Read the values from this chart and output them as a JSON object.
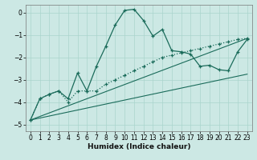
{
  "xlabel": "Humidex (Indice chaleur)",
  "background_color": "#cce8e4",
  "line_color": "#1a6b5a",
  "xlim": [
    -0.5,
    23.5
  ],
  "ylim": [
    -5.3,
    0.35
  ],
  "yticks": [
    0,
    -1,
    -2,
    -3,
    -4,
    -5
  ],
  "xticks": [
    0,
    1,
    2,
    3,
    4,
    5,
    6,
    7,
    8,
    9,
    10,
    11,
    12,
    13,
    14,
    15,
    16,
    17,
    18,
    19,
    20,
    21,
    22,
    23
  ],
  "curve1_x": [
    0,
    1,
    2,
    3,
    4,
    5,
    6,
    7,
    8,
    9,
    10,
    11,
    12,
    13,
    14,
    15,
    16,
    17,
    18,
    19,
    20,
    21,
    22,
    23
  ],
  "curve1_y": [
    -4.8,
    -3.85,
    -3.65,
    -3.5,
    -3.85,
    -2.7,
    -3.5,
    -2.4,
    -1.5,
    -0.55,
    0.1,
    0.15,
    -0.35,
    -1.05,
    -0.75,
    -1.7,
    -1.75,
    -1.85,
    -2.4,
    -2.35,
    -2.55,
    -2.6,
    -1.75,
    -1.2
  ],
  "curve2_x": [
    0,
    1,
    2,
    3,
    4,
    5,
    6,
    7,
    8,
    9,
    10,
    11,
    12,
    13,
    14,
    15,
    16,
    17,
    18,
    19,
    20,
    21,
    22,
    23
  ],
  "curve2_y": [
    -4.8,
    -3.85,
    -3.65,
    -3.5,
    -4.0,
    -3.5,
    -3.5,
    -3.5,
    -3.2,
    -3.0,
    -2.8,
    -2.6,
    -2.4,
    -2.2,
    -2.0,
    -1.9,
    -1.8,
    -1.7,
    -1.6,
    -1.5,
    -1.4,
    -1.3,
    -1.2,
    -1.15
  ],
  "trend1_x": [
    0,
    23
  ],
  "trend1_y": [
    -4.8,
    -1.15
  ],
  "trend2_x": [
    0,
    23
  ],
  "trend2_y": [
    -4.8,
    -2.75
  ],
  "grid_color": "#aad4cc",
  "tick_labelsize": 5.5,
  "xlabel_fontsize": 6.5
}
